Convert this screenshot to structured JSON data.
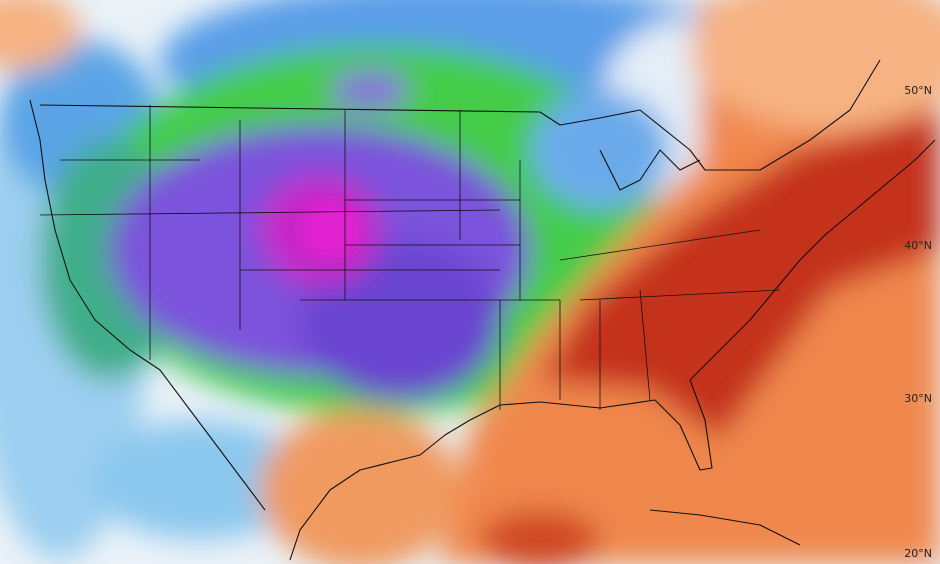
{
  "map": {
    "latitude_labels": [
      "50°N",
      "40°N",
      "30°N",
      "20°N"
    ]
  }
}
